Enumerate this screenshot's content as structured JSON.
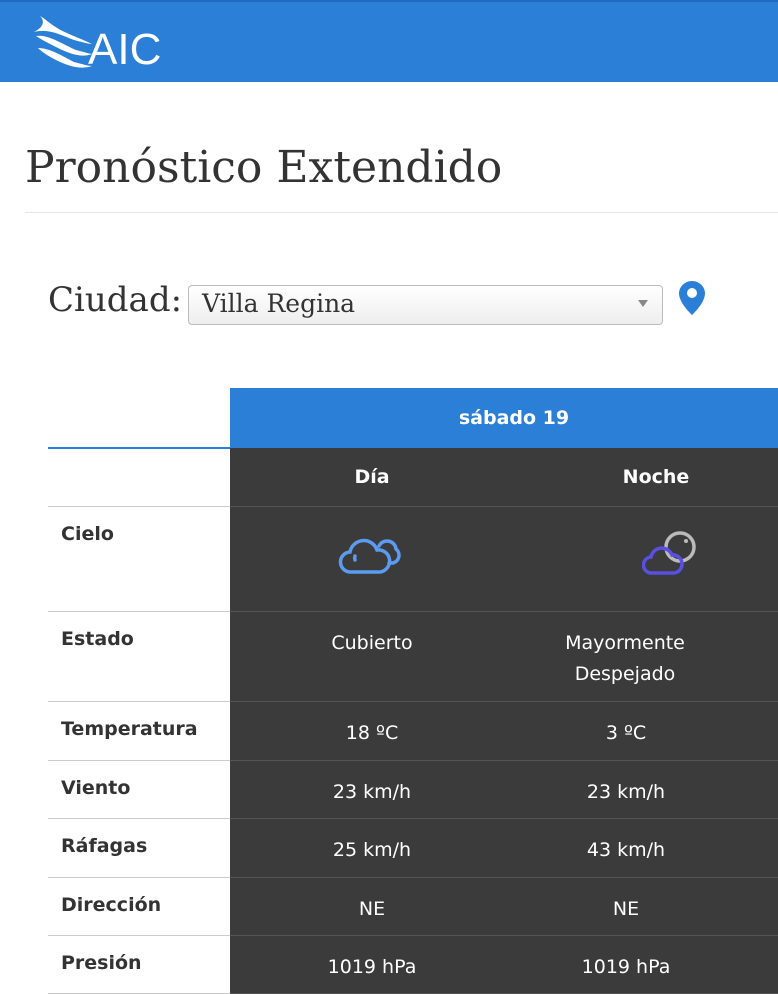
{
  "header": {
    "logo_text": "AIC"
  },
  "page": {
    "title": "Pronóstico Extendido"
  },
  "city": {
    "label": "Ciudad:",
    "selected": "Villa Regina",
    "location_icon": "map-pin-icon"
  },
  "forecast": {
    "day_label": "sábado 19",
    "periods": [
      "Día",
      "Noche"
    ],
    "rows": [
      {
        "label": "Cielo",
        "values": [
          "cloudy-icon",
          "partly-cloudy-night-icon"
        ]
      },
      {
        "label": "Estado",
        "values": [
          "Cubierto",
          "Mayormente Despejado"
        ]
      },
      {
        "label": "Temperatura",
        "values": [
          "18 ºC",
          "3 ºC"
        ]
      },
      {
        "label": "Viento",
        "values": [
          "23 km/h",
          "23 km/h"
        ]
      },
      {
        "label": "Ráfagas",
        "values": [
          "25 km/h",
          "43 km/h"
        ]
      },
      {
        "label": "Dirección",
        "values": [
          "NE",
          "NE"
        ]
      },
      {
        "label": "Presión",
        "values": [
          "1019 hPa",
          "1019 hPa"
        ]
      }
    ]
  },
  "colors": {
    "brand": "#2b7fd6",
    "table_bg": "#3b3b3b",
    "cloud_day": "#5b9cf0",
    "cloud_night": "#5a4fe0"
  }
}
